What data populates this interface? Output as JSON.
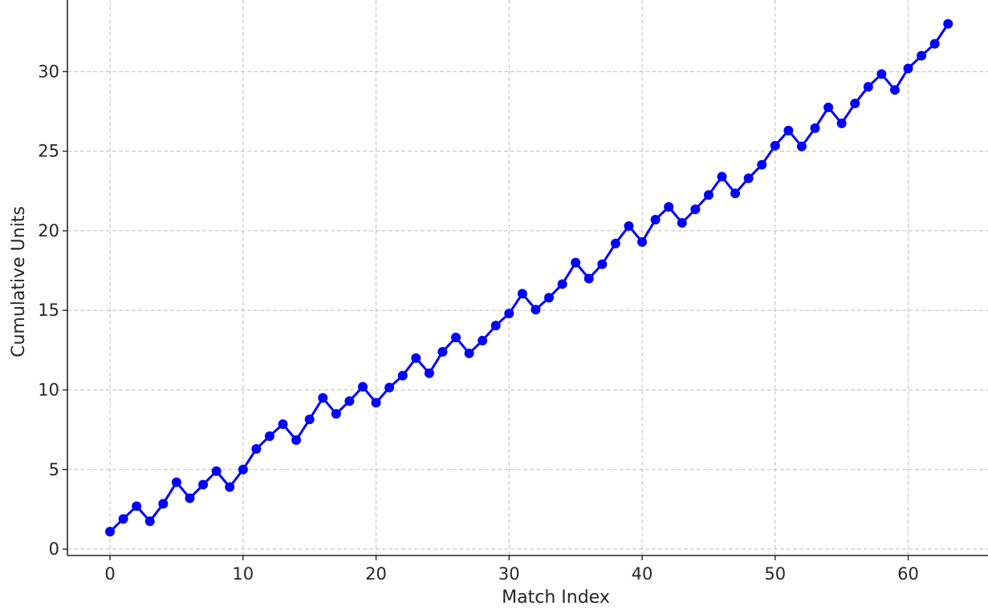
{
  "chart_data": {
    "type": "line",
    "xlabel": "Match Index",
    "ylabel": "Cumulative Units",
    "xlim": [
      -3.2,
      66
    ],
    "ylim": [
      -0.4,
      34.5
    ],
    "xticks": [
      0,
      10,
      20,
      30,
      40,
      50,
      60
    ],
    "yticks": [
      0,
      5,
      10,
      15,
      20,
      25,
      30
    ],
    "grid": true,
    "line_color": "#0000ff",
    "marker_color": "#0000ff",
    "series": [
      {
        "x": [
          0,
          1,
          2,
          3,
          4,
          5,
          6,
          7,
          8,
          9,
          10,
          11,
          12,
          13,
          14,
          15,
          16,
          17,
          18,
          19,
          20,
          21,
          22,
          23,
          24,
          25,
          26,
          27,
          28,
          29,
          30,
          31,
          32,
          33,
          34,
          35,
          36,
          37,
          38,
          39,
          40,
          41,
          42,
          43,
          44,
          45,
          46,
          47,
          48,
          49,
          50,
          51,
          52,
          53,
          54,
          55,
          56,
          57,
          58,
          59,
          60,
          61,
          62,
          63
        ],
        "values": [
          1.1,
          1.9,
          2.7,
          1.75,
          2.85,
          4.2,
          3.2,
          4.05,
          4.9,
          3.9,
          5.0,
          6.3,
          7.1,
          7.85,
          6.85,
          8.15,
          9.5,
          8.5,
          9.3,
          10.2,
          9.2,
          10.15,
          10.9,
          12.0,
          11.05,
          12.4,
          13.3,
          12.3,
          13.1,
          14.05,
          14.8,
          16.05,
          15.05,
          15.8,
          16.65,
          18.0,
          17.0,
          17.9,
          19.2,
          20.3,
          19.3,
          20.7,
          21.5,
          20.5,
          21.35,
          22.25,
          23.4,
          22.35,
          23.3,
          24.15,
          25.35,
          26.3,
          25.3,
          26.45,
          27.75,
          26.75,
          28.0,
          29.05,
          29.85,
          28.85,
          30.2,
          31.0,
          31.75,
          33.0
        ]
      }
    ]
  }
}
